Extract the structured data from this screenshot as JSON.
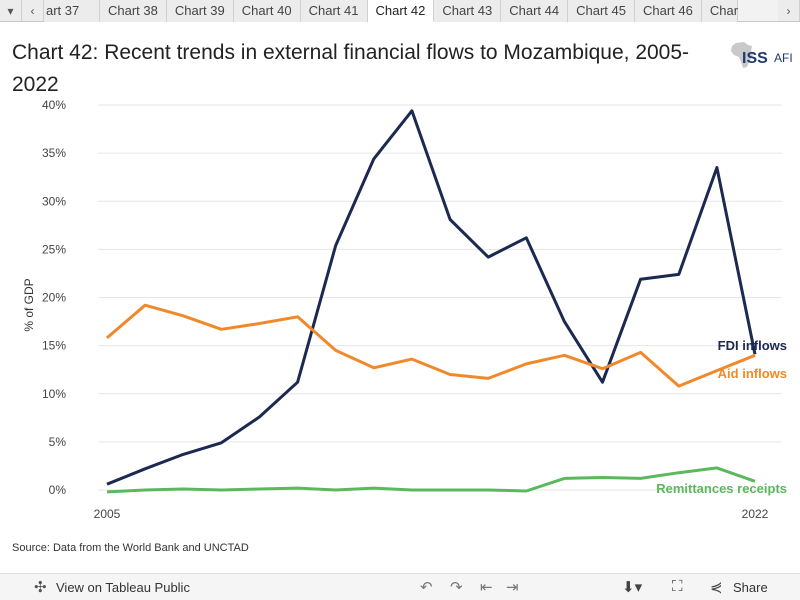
{
  "tabs": {
    "items": [
      {
        "label": "art 37",
        "active": false
      },
      {
        "label": "Chart 38",
        "active": false
      },
      {
        "label": "Chart 39",
        "active": false
      },
      {
        "label": "Chart 40",
        "active": false
      },
      {
        "label": "Chart 41",
        "active": false
      },
      {
        "label": "Chart 42",
        "active": true
      },
      {
        "label": "Chart 43",
        "active": false
      },
      {
        "label": "Chart 44",
        "active": false
      },
      {
        "label": "Chart 45",
        "active": false
      },
      {
        "label": "Chart 46",
        "active": false
      },
      {
        "label": "Char",
        "active": false
      }
    ]
  },
  "header": {
    "title": "Chart 42: Recent trends in external financial flows to Mozambique, 2005-2022",
    "logo_iss": "ISS",
    "logo_afi": "AFI"
  },
  "chart_data": {
    "type": "line",
    "ylabel": "% of GDP",
    "xlim": [
      2005,
      2022
    ],
    "ylim": [
      0,
      40
    ],
    "yticks": [
      0,
      5,
      10,
      15,
      20,
      25,
      30,
      35,
      40
    ],
    "ytick_labels": [
      "0%",
      "5%",
      "10%",
      "15%",
      "20%",
      "25%",
      "30%",
      "35%",
      "40%"
    ],
    "xtick_labels": [
      "2005",
      "2022"
    ],
    "grid": "horizontal",
    "x": [
      2005,
      2006,
      2007,
      2008,
      2009,
      2010,
      2011,
      2012,
      2013,
      2014,
      2015,
      2016,
      2017,
      2018,
      2019,
      2020,
      2021,
      2022
    ],
    "series": [
      {
        "name": "FDI inflows",
        "color": "#1c2951",
        "values": [
          0.6,
          2.2,
          3.7,
          4.9,
          7.6,
          11.2,
          25.4,
          34.4,
          39.4,
          28.1,
          24.2,
          26.2,
          17.5,
          11.2,
          21.9,
          22.4,
          33.5,
          14.1
        ]
      },
      {
        "name": "Aid inflows",
        "color": "#f0892b",
        "values": [
          15.8,
          19.2,
          18.1,
          16.7,
          17.3,
          18.0,
          14.5,
          12.7,
          13.6,
          12.0,
          11.6,
          13.1,
          14.0,
          12.6,
          14.3,
          10.8,
          12.4,
          14.0
        ]
      },
      {
        "name": "Remittances receipts",
        "color": "#5cb85c",
        "values": [
          -0.2,
          0.0,
          0.1,
          0.0,
          0.1,
          0.2,
          0.0,
          0.2,
          0.0,
          0.0,
          0.0,
          -0.1,
          1.2,
          1.3,
          1.2,
          1.8,
          2.3,
          0.9
        ]
      }
    ]
  },
  "source": "Source: Data from the World Bank and UNCTAD",
  "toolbar": {
    "view_label": "View on Tableau Public",
    "share_label": "Share"
  },
  "colors": {
    "fdi": "#1c2951",
    "aid": "#f0892b",
    "remittances": "#5cb85c",
    "grid": "#e6e6e6"
  }
}
